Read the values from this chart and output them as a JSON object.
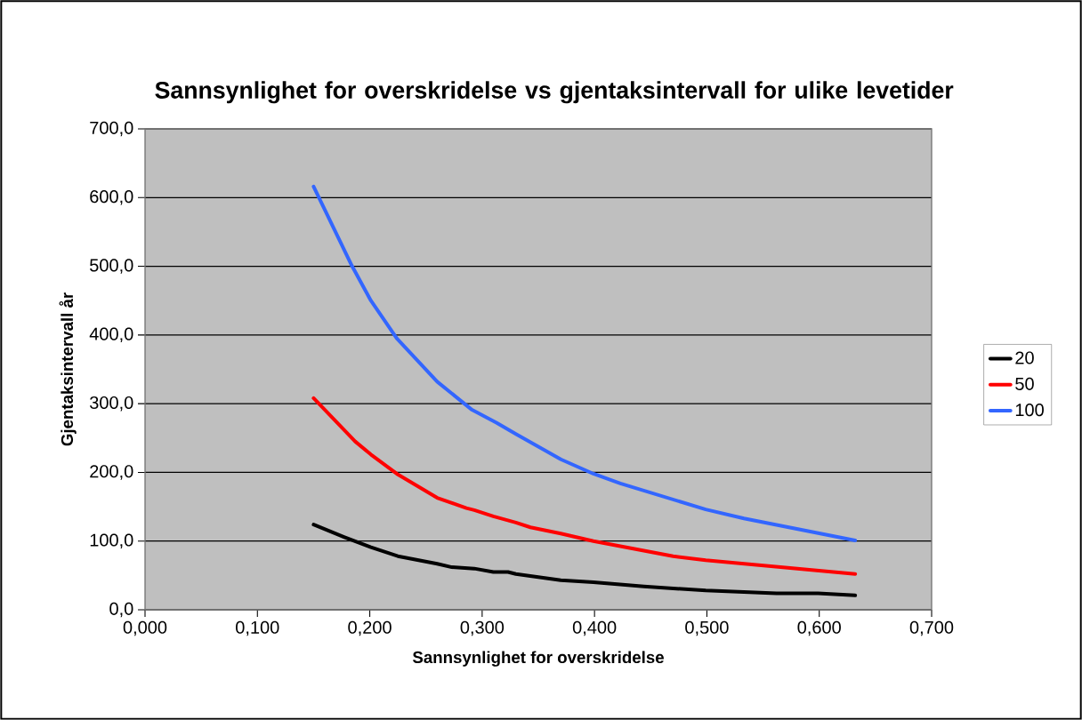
{
  "chart_data": {
    "type": "line",
    "title": "Sannsynlighet for overskridelse vs gjentaksintervall for ulike levetider",
    "xlabel": "Sannsynlighet for overskridelse",
    "ylabel": "Gjentaksintervall år",
    "xlim": [
      0,
      0.7
    ],
    "ylim": [
      0,
      700
    ],
    "xticks": [
      {
        "value": 0,
        "label": "0,000"
      },
      {
        "value": 0.1,
        "label": "0,100"
      },
      {
        "value": 0.2,
        "label": "0,200"
      },
      {
        "value": 0.3,
        "label": "0,300"
      },
      {
        "value": 0.4,
        "label": "0,400"
      },
      {
        "value": 0.5,
        "label": "0,500"
      },
      {
        "value": 0.6,
        "label": "0,600"
      },
      {
        "value": 0.7,
        "label": "0,700"
      }
    ],
    "yticks": [
      {
        "value": 0,
        "label": "0,0"
      },
      {
        "value": 100,
        "label": "100,0"
      },
      {
        "value": 200,
        "label": "200,0"
      },
      {
        "value": 300,
        "label": "300,0"
      },
      {
        "value": 400,
        "label": "400,0"
      },
      {
        "value": 500,
        "label": "500,0"
      },
      {
        "value": 600,
        "label": "600,0"
      },
      {
        "value": 700,
        "label": "700,0"
      }
    ],
    "grid": "y",
    "legend": "right",
    "series": [
      {
        "name": "20",
        "color": "#000000",
        "x": [
          0.15,
          0.177,
          0.201,
          0.225,
          0.26,
          0.273,
          0.293,
          0.31,
          0.323,
          0.33,
          0.37,
          0.399,
          0.444,
          0.499,
          0.562,
          0.599,
          0.632
        ],
        "values": [
          124,
          106,
          91,
          78,
          67,
          62,
          60,
          55,
          55,
          52,
          43,
          40,
          34,
          28,
          24,
          24,
          21
        ]
      },
      {
        "name": "50",
        "color": "#ff0000",
        "x": [
          0.15,
          0.187,
          0.201,
          0.224,
          0.26,
          0.286,
          0.293,
          0.31,
          0.33,
          0.343,
          0.37,
          0.399,
          0.47,
          0.499,
          0.632
        ],
        "values": [
          308,
          245,
          226,
          198,
          163,
          148,
          145,
          136,
          127,
          120,
          111,
          100,
          78,
          72,
          52
        ]
      },
      {
        "name": "100",
        "color": "#3366ff",
        "x": [
          0.15,
          0.184,
          0.201,
          0.224,
          0.26,
          0.291,
          0.313,
          0.33,
          0.37,
          0.399,
          0.423,
          0.499,
          0.533,
          0.632
        ],
        "values": [
          616,
          501,
          450,
          395,
          332,
          291,
          272,
          256,
          219,
          198,
          184,
          146,
          133,
          101
        ]
      }
    ]
  }
}
